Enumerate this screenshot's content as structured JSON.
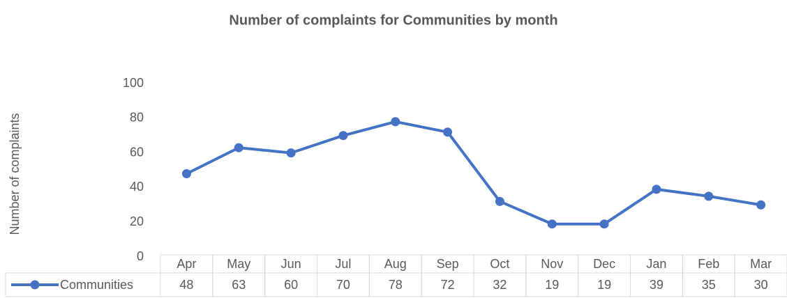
{
  "chart_data": {
    "type": "line",
    "title": "Number of complaints for Communities by month",
    "y_label": "Number of complaints",
    "categories": [
      "Apr",
      "May",
      "Jun",
      "Jul",
      "Aug",
      "Sep",
      "Oct",
      "Nov",
      "Dec",
      "Jan",
      "Feb",
      "Mar"
    ],
    "series": [
      {
        "name": "Communities",
        "color": "#4472c4",
        "values": [
          48,
          63,
          60,
          70,
          78,
          72,
          32,
          19,
          19,
          39,
          35,
          30
        ]
      }
    ],
    "ylim": [
      0,
      100
    ],
    "yticks": [
      0,
      20,
      40,
      60,
      80,
      100
    ],
    "grid": false,
    "data_table": true
  }
}
